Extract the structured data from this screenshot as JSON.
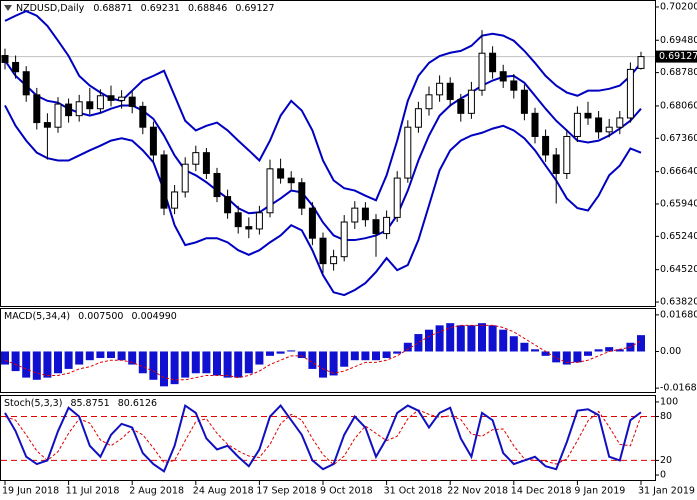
{
  "chart_data": [
    {
      "type": "candlestick",
      "title": "NZDUSD,Daily",
      "categories": [
        "19 Jun 2018",
        null,
        null,
        null,
        null,
        null,
        "11 Jul 2018",
        null,
        null,
        null,
        null,
        null,
        "2 Aug 2018",
        null,
        null,
        null,
        null,
        null,
        "24 Aug 2018",
        null,
        null,
        null,
        null,
        null,
        "17 Sep 2018",
        null,
        null,
        null,
        null,
        null,
        "9 Oct 2018",
        null,
        null,
        null,
        null,
        null,
        "31 Oct 2018",
        null,
        null,
        null,
        null,
        null,
        "22 Nov 2018",
        null,
        null,
        null,
        null,
        null,
        "14 Dec 2018",
        null,
        null,
        null,
        null,
        null,
        "9 Jan 2019",
        null,
        null,
        null,
        null,
        null,
        "31 Jan 2019"
      ],
      "open": [
        0.6915,
        0.69,
        0.688,
        0.683,
        0.677,
        0.676,
        0.681,
        0.6785,
        0.6815,
        0.68,
        0.6828,
        0.6818,
        0.6825,
        0.6805,
        0.676,
        0.67,
        0.6585,
        0.662,
        0.668,
        0.6705,
        0.666,
        0.661,
        0.6575,
        0.6545,
        0.654,
        0.6575,
        0.667,
        0.665,
        0.664,
        0.6585,
        0.652,
        0.6465,
        0.648,
        0.6555,
        0.6585,
        0.656,
        0.653,
        0.6565,
        0.665,
        0.676,
        0.68,
        0.683,
        0.6855,
        0.682,
        0.679,
        0.684,
        0.692,
        0.688,
        0.686,
        0.684,
        0.679,
        0.674,
        0.67,
        0.666,
        0.674,
        0.679,
        0.678,
        0.675,
        0.676,
        0.678,
        0.68871
      ],
      "high": [
        0.693,
        0.6915,
        0.6892,
        0.6845,
        0.679,
        0.6825,
        0.6822,
        0.683,
        0.6845,
        0.6842,
        0.685,
        0.684,
        0.6838,
        0.6815,
        0.6772,
        0.671,
        0.6635,
        0.6695,
        0.672,
        0.6715,
        0.6672,
        0.6625,
        0.659,
        0.6565,
        0.659,
        0.669,
        0.6692,
        0.6665,
        0.665,
        0.6598,
        0.6532,
        0.6495,
        0.657,
        0.66,
        0.6598,
        0.6572,
        0.658,
        0.6665,
        0.6775,
        0.6815,
        0.6848,
        0.6872,
        0.6868,
        0.6832,
        0.6858,
        0.697,
        0.6935,
        0.6895,
        0.6875,
        0.6852,
        0.6802,
        0.6755,
        0.6715,
        0.6755,
        0.6805,
        0.6815,
        0.6795,
        0.6778,
        0.6795,
        0.69,
        0.69231
      ],
      "low": [
        0.6885,
        0.6865,
        0.6815,
        0.6755,
        0.669,
        0.6748,
        0.677,
        0.6772,
        0.6788,
        0.679,
        0.6805,
        0.68,
        0.679,
        0.6745,
        0.6685,
        0.657,
        0.6572,
        0.6608,
        0.6665,
        0.6648,
        0.6598,
        0.6562,
        0.653,
        0.652,
        0.6528,
        0.6565,
        0.6638,
        0.6625,
        0.657,
        0.6505,
        0.6445,
        0.645,
        0.647,
        0.654,
        0.6545,
        0.648,
        0.6518,
        0.6555,
        0.664,
        0.6748,
        0.6785,
        0.6815,
        0.6805,
        0.6772,
        0.6778,
        0.6828,
        0.6865,
        0.6845,
        0.6822,
        0.6775,
        0.6725,
        0.6685,
        0.6595,
        0.6648,
        0.6728,
        0.6765,
        0.6735,
        0.6738,
        0.6745,
        0.677,
        0.68846
      ],
      "close": [
        0.69,
        0.688,
        0.683,
        0.677,
        0.676,
        0.681,
        0.6785,
        0.6815,
        0.68,
        0.6828,
        0.6818,
        0.6825,
        0.6805,
        0.676,
        0.67,
        0.6585,
        0.662,
        0.668,
        0.6705,
        0.666,
        0.661,
        0.6575,
        0.6545,
        0.654,
        0.6575,
        0.667,
        0.665,
        0.664,
        0.6585,
        0.652,
        0.6465,
        0.648,
        0.6555,
        0.6585,
        0.656,
        0.653,
        0.6565,
        0.665,
        0.676,
        0.68,
        0.683,
        0.6855,
        0.682,
        0.679,
        0.684,
        0.692,
        0.688,
        0.686,
        0.684,
        0.679,
        0.674,
        0.67,
        0.666,
        0.674,
        0.679,
        0.678,
        0.675,
        0.676,
        0.678,
        0.6885,
        0.69127
      ],
      "bands": [
        {
          "color": "#0000c0",
          "values": [
            0.699,
            0.7001,
            0.7011,
            0.7001,
            0.6979,
            0.6947,
            0.6914,
            0.6871,
            0.685,
            0.6835,
            0.6822,
            0.6817,
            0.6839,
            0.6861,
            0.6871,
            0.6882,
            0.6828,
            0.6774,
            0.6753,
            0.6763,
            0.677,
            0.6753,
            0.6731,
            0.671,
            0.6688,
            0.6731,
            0.6785,
            0.6817,
            0.6796,
            0.6753,
            0.6688,
            0.6645,
            0.6628,
            0.6623,
            0.6612,
            0.6602,
            0.6656,
            0.6731,
            0.6817,
            0.6871,
            0.6899,
            0.6914,
            0.6921,
            0.6925,
            0.6936,
            0.6958,
            0.6962,
            0.6958,
            0.6947,
            0.6925,
            0.6899,
            0.6871,
            0.685,
            0.6835,
            0.6828,
            0.6839,
            0.6839,
            0.6843,
            0.685,
            0.6871,
            0.6899
          ]
        },
        {
          "color": "#0000c0",
          "values": [
            0.6904,
            0.6871,
            0.685,
            0.6828,
            0.6817,
            0.6813,
            0.68,
            0.6791,
            0.6785,
            0.6791,
            0.68,
            0.6807,
            0.6807,
            0.6796,
            0.6778,
            0.6742,
            0.6699,
            0.6667,
            0.6656,
            0.6641,
            0.6623,
            0.6606,
            0.6585,
            0.6574,
            0.6576,
            0.6591,
            0.6606,
            0.6623,
            0.6619,
            0.6591,
            0.6554,
            0.6526,
            0.6516,
            0.6516,
            0.652,
            0.6526,
            0.6537,
            0.657,
            0.6623,
            0.6688,
            0.6742,
            0.6785,
            0.6807,
            0.6822,
            0.6835,
            0.685,
            0.6861,
            0.6869,
            0.6871,
            0.6856,
            0.6828,
            0.68,
            0.6774,
            0.6753,
            0.6731,
            0.6727,
            0.6731,
            0.6742,
            0.6757,
            0.6774,
            0.68
          ]
        },
        {
          "color": "#0000c0",
          "values": [
            0.6807,
            0.6763,
            0.6731,
            0.6705,
            0.6693,
            0.6688,
            0.6688,
            0.6699,
            0.671,
            0.672,
            0.6731,
            0.6736,
            0.6731,
            0.671,
            0.6684,
            0.6623,
            0.6548,
            0.6505,
            0.6511,
            0.652,
            0.652,
            0.6511,
            0.6494,
            0.6484,
            0.6494,
            0.6511,
            0.6526,
            0.6548,
            0.6537,
            0.6494,
            0.644,
            0.6403,
            0.6397,
            0.6408,
            0.6423,
            0.6447,
            0.6477,
            0.6451,
            0.6462,
            0.6516,
            0.6591,
            0.6667,
            0.671,
            0.6731,
            0.6742,
            0.6748,
            0.6757,
            0.6763,
            0.6753,
            0.6736,
            0.671,
            0.6677,
            0.6645,
            0.6606,
            0.6585,
            0.658,
            0.6612,
            0.6656,
            0.6677,
            0.6714,
            0.6705
          ]
        }
      ],
      "price_line": true,
      "ylim": [
        0.63734,
        0.70329
      ],
      "yticks": [
        {
          "value": 0.702,
          "label": "0.70200"
        },
        {
          "value": 0.6948,
          "label": "0.69480"
        },
        {
          "value": 0.6878,
          "label": "0.68780"
        },
        {
          "value": 0.6806,
          "label": "0.68060"
        },
        {
          "value": 0.6736,
          "label": "0.67360"
        },
        {
          "value": 0.6664,
          "label": "0.66640"
        },
        {
          "value": 0.6594,
          "label": "0.65940"
        },
        {
          "value": 0.6524,
          "label": "0.65240"
        },
        {
          "value": 0.6452,
          "label": "0.64520"
        },
        {
          "value": 0.6382,
          "label": "0.63820"
        }
      ]
    },
    {
      "type": "macd",
      "title": "MACD(5,34,4)",
      "histogram": {
        "color": "#1010d0",
        "values": [
          -0.006,
          -0.009,
          -0.012,
          -0.013,
          -0.012,
          -0.01,
          -0.008,
          -0.006,
          -0.004,
          -0.003,
          -0.003,
          -0.004,
          -0.006,
          -0.01,
          -0.013,
          -0.016,
          -0.015,
          -0.012,
          -0.01,
          -0.01,
          -0.011,
          -0.012,
          -0.012,
          -0.01,
          -0.006,
          -0.002,
          -0.001,
          0.0005,
          -0.003,
          -0.008,
          -0.012,
          -0.011,
          -0.007,
          -0.004,
          -0.004,
          -0.004,
          -0.003,
          -0.001,
          0.004,
          0.008,
          0.01,
          0.012,
          0.013,
          0.012,
          0.012,
          0.013,
          0.012,
          0.01,
          0.007,
          0.004,
          0.001,
          -0.002,
          -0.005,
          -0.006,
          -0.005,
          -0.002,
          0.001,
          0.002,
          0.001,
          0.004,
          0.0075
        ]
      },
      "signal": {
        "color": "#e00000",
        "values": [
          -0.004,
          -0.006,
          -0.008,
          -0.01,
          -0.011,
          -0.011,
          -0.01,
          -0.008,
          -0.007,
          -0.005,
          -0.004,
          -0.004,
          -0.005,
          -0.007,
          -0.009,
          -0.012,
          -0.013,
          -0.013,
          -0.012,
          -0.011,
          -0.011,
          -0.011,
          -0.012,
          -0.011,
          -0.009,
          -0.006,
          -0.004,
          -0.002,
          -0.002,
          -0.005,
          -0.008,
          -0.01,
          -0.009,
          -0.007,
          -0.005,
          -0.005,
          -0.004,
          -0.002,
          0.001,
          0.004,
          0.007,
          0.009,
          0.011,
          0.012,
          0.012,
          0.012,
          0.012,
          0.011,
          0.009,
          0.006,
          0.003,
          0.0,
          -0.003,
          -0.005,
          -0.005,
          -0.004,
          -0.002,
          0.0,
          0.001,
          0.002,
          0.00499
        ]
      },
      "last_value_labels": [
        "0.007500",
        "0.004990"
      ],
      "ylim": [
        -0.0186,
        0.0195
      ],
      "yticks": [
        0.016804,
        {
          "value": 0,
          "label": "0.00"
        },
        -0.01683
      ]
    },
    {
      "type": "stochastic",
      "title": "Stoch(5,3,3)",
      "k": {
        "color": "#1010c0",
        "values": [
          85,
          60,
          25,
          15,
          20,
          60,
          92,
          80,
          40,
          25,
          55,
          70,
          65,
          30,
          15,
          5,
          40,
          95,
          85,
          50,
          35,
          40,
          25,
          12,
          35,
          80,
          95,
          75,
          55,
          20,
          8,
          15,
          55,
          80,
          65,
          25,
          50,
          85,
          95,
          88,
          65,
          85,
          92,
          50,
          25,
          85,
          75,
          30,
          15,
          20,
          25,
          12,
          8,
          45,
          88,
          90,
          82,
          25,
          20,
          75,
          85.8751
        ]
      },
      "d": {
        "color": "#e00000",
        "values": [
          80,
          75,
          55,
          33,
          20,
          32,
          57,
          77,
          71,
          48,
          40,
          50,
          63,
          55,
          37,
          17,
          20,
          47,
          73,
          77,
          57,
          42,
          33,
          26,
          24,
          42,
          70,
          83,
          75,
          50,
          28,
          14,
          26,
          50,
          67,
          57,
          47,
          53,
          77,
          89,
          83,
          79,
          81,
          76,
          56,
          53,
          62,
          63,
          40,
          22,
          20,
          19,
          15,
          22,
          47,
          74,
          87,
          66,
          42,
          40,
          80.6126
        ]
      },
      "levels": [
        80,
        20
      ],
      "level_color": "#e00000",
      "ylim": [
        -6.8,
        108.1
      ],
      "yticks": [
        100,
        80,
        20,
        0
      ]
    }
  ]
}
